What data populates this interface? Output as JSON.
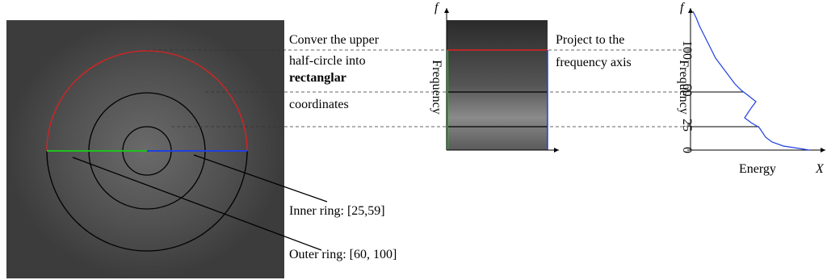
{
  "left_panel": {
    "inner_label": "Inner ring: [25,59]",
    "outer_label": "Outer ring: [60, 100]"
  },
  "step1": {
    "lines": [
      "Conver the upper",
      "half-circle into",
      "rectanglar",
      "coordinates"
    ]
  },
  "middle_panel": {
    "y_axis_label": "Frequency",
    "axis_symbol": "f"
  },
  "step2": {
    "lines": [
      "Project to the",
      "frequency axis"
    ]
  },
  "right_panel": {
    "y_axis_label": "Frequency",
    "axis_symbol": "f",
    "x_axis_label": "Energy",
    "x_axis_symbol": "X",
    "yticks": [
      0,
      25,
      60,
      100
    ]
  }
}
